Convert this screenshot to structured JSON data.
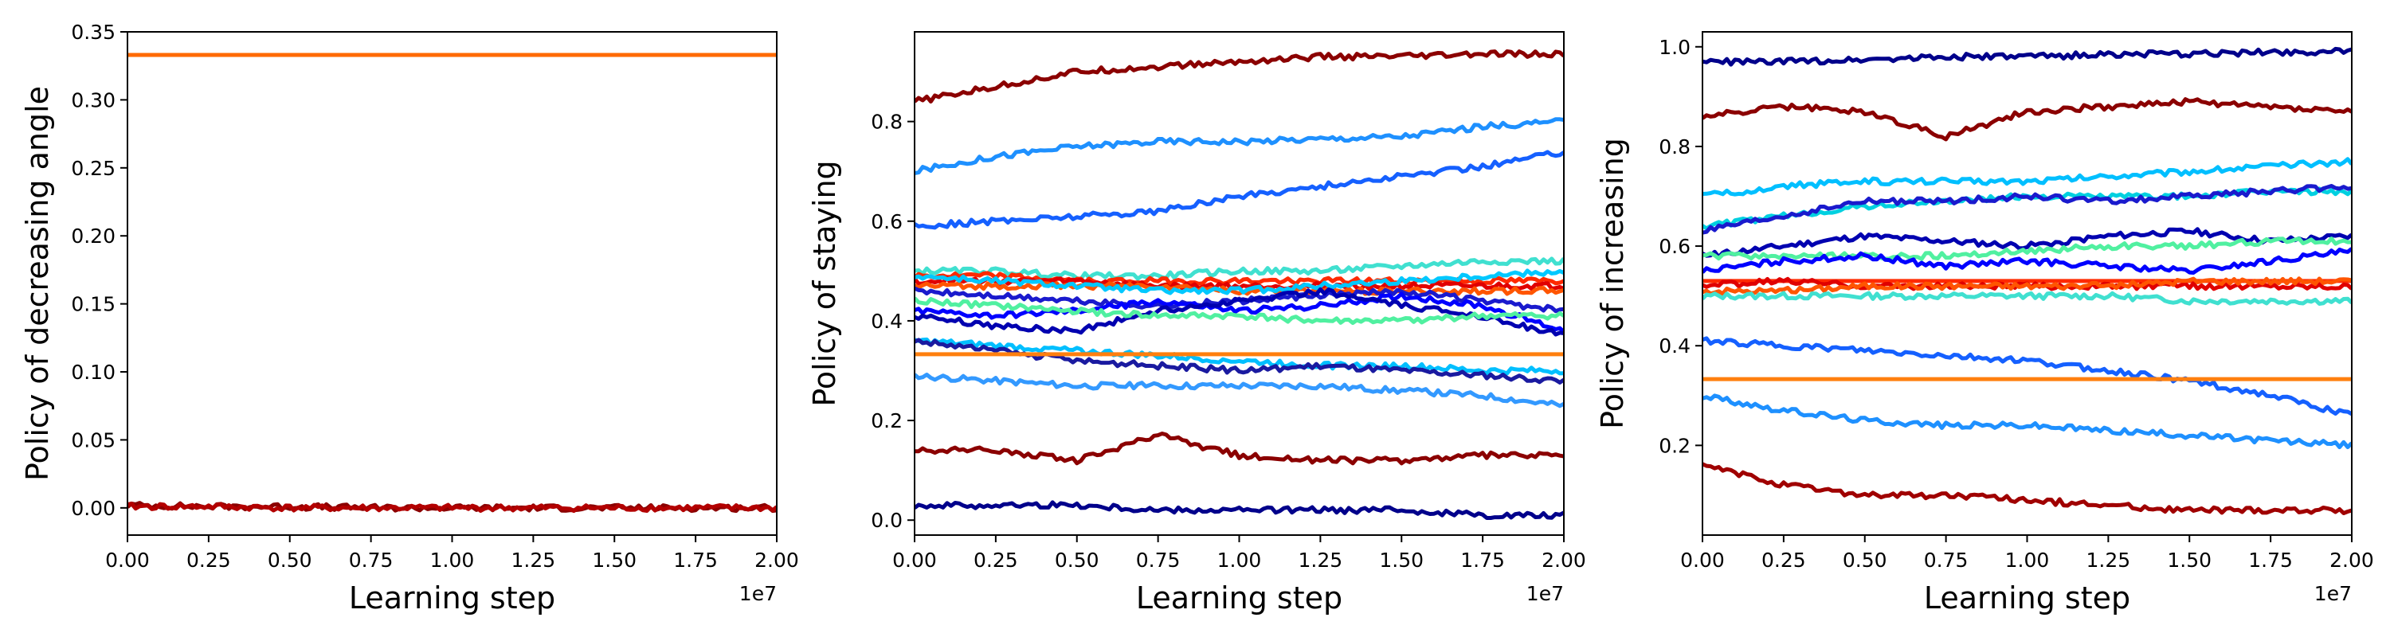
{
  "chart_data": [
    {
      "type": "line",
      "xlabel": "Learning step",
      "ylabel": "Policy of decreasing angle",
      "x_offset_label": "1e7",
      "xlim": [
        0,
        2.0
      ],
      "ylim": [
        -0.02,
        0.35
      ],
      "xticks": [
        "0.00",
        "0.25",
        "0.50",
        "0.75",
        "1.00",
        "1.25",
        "1.50",
        "1.75",
        "2.00"
      ],
      "yticks": [
        {
          "v": 0.0,
          "t": "0.00"
        },
        {
          "v": 0.05,
          "t": "0.05"
        },
        {
          "v": 0.1,
          "t": "0.10"
        },
        {
          "v": 0.15,
          "t": "0.15"
        },
        {
          "v": 0.2,
          "t": "0.20"
        },
        {
          "v": 0.25,
          "t": "0.25"
        },
        {
          "v": 0.3,
          "t": "0.30"
        },
        {
          "v": 0.35,
          "t": "0.35"
        }
      ],
      "series": [
        {
          "color": "#ff6a00",
          "values": [
            0.333,
            0.333,
            0.333,
            0.333,
            0.333,
            0.333,
            0.333,
            0.333,
            0.333
          ]
        },
        {
          "color": "#8b0000",
          "values": [
            0.002,
            0.001,
            0.001,
            0.0,
            0.0,
            0.0,
            0.0,
            0.0,
            0.0
          ]
        },
        {
          "color": "#b30000",
          "values": [
            0.001,
            0.001,
            0.0,
            0.0,
            0.0,
            0.0,
            0.0,
            0.0,
            0.0
          ]
        }
      ]
    },
    {
      "type": "line",
      "xlabel": "Learning step",
      "ylabel": "Policy of staying",
      "x_offset_label": "1e7",
      "xlim": [
        0,
        2.0
      ],
      "ylim": [
        -0.03,
        0.98
      ],
      "xticks": [
        "0.00",
        "0.25",
        "0.50",
        "0.75",
        "1.00",
        "1.25",
        "1.50",
        "1.75",
        "2.00"
      ],
      "yticks": [
        {
          "v": 0.0,
          "t": "0.0"
        },
        {
          "v": 0.2,
          "t": "0.2"
        },
        {
          "v": 0.4,
          "t": "0.4"
        },
        {
          "v": 0.6,
          "t": "0.6"
        },
        {
          "v": 0.8,
          "t": "0.8"
        }
      ],
      "series": [
        {
          "color": "#8b0000",
          "values": [
            0.84,
            0.87,
            0.9,
            0.91,
            0.92,
            0.93,
            0.93,
            0.935,
            0.935
          ]
        },
        {
          "color": "#1e90ff",
          "values": [
            0.7,
            0.73,
            0.75,
            0.76,
            0.76,
            0.765,
            0.77,
            0.79,
            0.8
          ]
        },
        {
          "color": "#1560ff",
          "values": [
            0.59,
            0.6,
            0.61,
            0.62,
            0.65,
            0.67,
            0.69,
            0.71,
            0.74
          ]
        },
        {
          "color": "#40e0d0",
          "values": [
            0.5,
            0.5,
            0.49,
            0.49,
            0.5,
            0.5,
            0.51,
            0.52,
            0.52
          ]
        },
        {
          "color": "#ff2a00",
          "values": [
            0.49,
            0.49,
            0.48,
            0.48,
            0.48,
            0.48,
            0.48,
            0.48,
            0.48
          ]
        },
        {
          "color": "#e00000",
          "values": [
            0.48,
            0.48,
            0.48,
            0.47,
            0.47,
            0.47,
            0.47,
            0.47,
            0.47
          ]
        },
        {
          "color": "#ff5500",
          "values": [
            0.47,
            0.47,
            0.47,
            0.47,
            0.46,
            0.46,
            0.46,
            0.46,
            0.46
          ]
        },
        {
          "color": "#00c8ff",
          "values": [
            0.49,
            0.48,
            0.47,
            0.46,
            0.46,
            0.47,
            0.48,
            0.49,
            0.5
          ]
        },
        {
          "color": "#1a1acd",
          "values": [
            0.46,
            0.45,
            0.44,
            0.43,
            0.44,
            0.45,
            0.46,
            0.44,
            0.42
          ]
        },
        {
          "color": "#0000ff",
          "values": [
            0.42,
            0.41,
            0.42,
            0.44,
            0.42,
            0.43,
            0.45,
            0.43,
            0.38
          ]
        },
        {
          "color": "#0000b0",
          "values": [
            0.41,
            0.39,
            0.38,
            0.42,
            0.44,
            0.46,
            0.43,
            0.41,
            0.37
          ]
        },
        {
          "color": "#50f0a0",
          "values": [
            0.44,
            0.43,
            0.42,
            0.41,
            0.41,
            0.4,
            0.4,
            0.41,
            0.41
          ]
        },
        {
          "color": "#00bfff",
          "values": [
            0.36,
            0.35,
            0.34,
            0.33,
            0.32,
            0.31,
            0.31,
            0.3,
            0.3
          ]
        },
        {
          "color": "#1a1aa0",
          "values": [
            0.36,
            0.34,
            0.32,
            0.31,
            0.3,
            0.31,
            0.3,
            0.29,
            0.28
          ]
        },
        {
          "color": "#ff7f0e",
          "values": [
            0.333,
            0.333,
            0.333,
            0.333,
            0.333,
            0.333,
            0.333,
            0.333,
            0.333
          ]
        },
        {
          "color": "#3399ff",
          "values": [
            0.29,
            0.28,
            0.27,
            0.27,
            0.27,
            0.27,
            0.26,
            0.25,
            0.23
          ]
        },
        {
          "color": "#8b0000",
          "values": [
            0.14,
            0.14,
            0.12,
            0.17,
            0.13,
            0.12,
            0.12,
            0.13,
            0.13
          ]
        },
        {
          "color": "#00008b",
          "values": [
            0.03,
            0.03,
            0.03,
            0.02,
            0.02,
            0.02,
            0.02,
            0.01,
            0.01
          ]
        }
      ]
    },
    {
      "type": "line",
      "xlabel": "Learning step",
      "ylabel": "Policy of increasing",
      "x_offset_label": "1e7",
      "xlim": [
        0,
        2.0
      ],
      "ylim": [
        0.02,
        1.03
      ],
      "xticks": [
        "0.00",
        "0.25",
        "0.50",
        "0.75",
        "1.00",
        "1.25",
        "1.50",
        "1.75",
        "2.00"
      ],
      "yticks": [
        {
          "v": 0.2,
          "t": "0.2"
        },
        {
          "v": 0.4,
          "t": "0.4"
        },
        {
          "v": 0.6,
          "t": "0.6"
        },
        {
          "v": 0.8,
          "t": "0.8"
        },
        {
          "v": 1.0,
          "t": "1.0"
        }
      ],
      "series": [
        {
          "color": "#00008b",
          "values": [
            0.97,
            0.97,
            0.975,
            0.98,
            0.98,
            0.985,
            0.985,
            0.99,
            0.99
          ]
        },
        {
          "color": "#8b0000",
          "values": [
            0.86,
            0.88,
            0.87,
            0.82,
            0.87,
            0.88,
            0.89,
            0.88,
            0.87
          ]
        },
        {
          "color": "#00bfff",
          "values": [
            0.7,
            0.72,
            0.73,
            0.73,
            0.73,
            0.74,
            0.75,
            0.76,
            0.77
          ]
        },
        {
          "color": "#00d0e0",
          "values": [
            0.64,
            0.66,
            0.68,
            0.69,
            0.7,
            0.7,
            0.7,
            0.71,
            0.71
          ]
        },
        {
          "color": "#1a1acd",
          "values": [
            0.63,
            0.66,
            0.69,
            0.69,
            0.7,
            0.69,
            0.7,
            0.71,
            0.72
          ]
        },
        {
          "color": "#0000b0",
          "values": [
            0.58,
            0.6,
            0.62,
            0.61,
            0.6,
            0.62,
            0.63,
            0.61,
            0.62
          ]
        },
        {
          "color": "#50f0a0",
          "values": [
            0.58,
            0.58,
            0.58,
            0.58,
            0.59,
            0.6,
            0.6,
            0.61,
            0.61
          ]
        },
        {
          "color": "#0000ff",
          "values": [
            0.55,
            0.57,
            0.58,
            0.56,
            0.57,
            0.56,
            0.55,
            0.57,
            0.59
          ]
        },
        {
          "color": "#ff2a00",
          "values": [
            0.53,
            0.53,
            0.53,
            0.53,
            0.53,
            0.53,
            0.53,
            0.53,
            0.53
          ]
        },
        {
          "color": "#e00000",
          "values": [
            0.52,
            0.53,
            0.52,
            0.52,
            0.52,
            0.52,
            0.52,
            0.52,
            0.52
          ]
        },
        {
          "color": "#ff5500",
          "values": [
            0.51,
            0.51,
            0.52,
            0.52,
            0.52,
            0.52,
            0.53,
            0.53,
            0.53
          ]
        },
        {
          "color": "#40e0d0",
          "values": [
            0.5,
            0.5,
            0.5,
            0.5,
            0.5,
            0.5,
            0.49,
            0.49,
            0.49
          ]
        },
        {
          "color": "#1560ff",
          "values": [
            0.41,
            0.4,
            0.39,
            0.38,
            0.37,
            0.35,
            0.33,
            0.3,
            0.26
          ]
        },
        {
          "color": "#ff7f0e",
          "values": [
            0.333,
            0.333,
            0.333,
            0.333,
            0.333,
            0.333,
            0.333,
            0.333,
            0.333
          ]
        },
        {
          "color": "#1e90ff",
          "values": [
            0.3,
            0.27,
            0.25,
            0.24,
            0.24,
            0.23,
            0.22,
            0.21,
            0.2
          ]
        },
        {
          "color": "#a00000",
          "values": [
            0.16,
            0.12,
            0.1,
            0.1,
            0.09,
            0.08,
            0.07,
            0.07,
            0.07
          ]
        }
      ]
    }
  ]
}
